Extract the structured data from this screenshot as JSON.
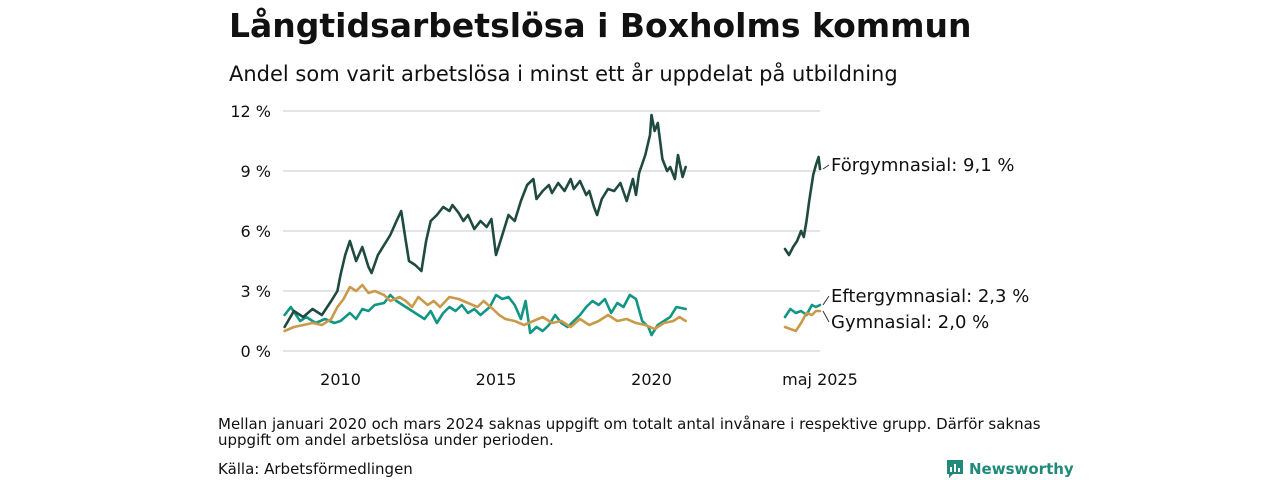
{
  "title": "Långtidsarbetslösa i Boxholms kommun",
  "subtitle": "Andel som varit arbetslösa i minst ett år uppdelat på utbildning",
  "note": "Mellan januari 2020 och mars 2024 saknas uppgift om totalt antal invånare i respektive grupp. Därför saknas uppgift om andel arbetslösa under perioden.",
  "source": "Källa: Arbetsförmedlingen",
  "brand": "Newsworthy",
  "chart_data": {
    "type": "line",
    "y_ticks": [
      "0 %",
      "3 %",
      "6 %",
      "9 %",
      "12 %"
    ],
    "y_tick_values": [
      0,
      3,
      6,
      9,
      12
    ],
    "x_ticks": [
      "2010",
      "2015",
      "2020",
      "maj 2025"
    ],
    "ylim": [
      0,
      12
    ],
    "grid": true,
    "gap": [
      "2020-01",
      "2024-03"
    ],
    "series": [
      {
        "name": "Förgymnasial",
        "label": "Förgymnasial: 9,1 %",
        "color": "#1f4a40",
        "segments": [
          [
            [
              2008.2,
              1.2
            ],
            [
              2008.5,
              2.0
            ],
            [
              2008.8,
              1.7
            ],
            [
              2009.1,
              2.1
            ],
            [
              2009.4,
              1.8
            ],
            [
              2009.7,
              2.5
            ],
            [
              2009.9,
              3.0
            ],
            [
              2010.0,
              3.8
            ],
            [
              2010.15,
              4.8
            ],
            [
              2010.3,
              5.5
            ],
            [
              2010.5,
              4.5
            ],
            [
              2010.7,
              5.2
            ],
            [
              2010.9,
              4.2
            ],
            [
              2011.0,
              3.9
            ],
            [
              2011.2,
              4.8
            ],
            [
              2011.4,
              5.3
            ],
            [
              2011.6,
              5.8
            ],
            [
              2011.8,
              6.5
            ],
            [
              2011.95,
              7.0
            ],
            [
              2012.1,
              5.5
            ],
            [
              2012.2,
              4.5
            ],
            [
              2012.4,
              4.3
            ],
            [
              2012.6,
              4.0
            ],
            [
              2012.75,
              5.5
            ],
            [
              2012.9,
              6.5
            ],
            [
              2013.1,
              6.8
            ],
            [
              2013.3,
              7.2
            ],
            [
              2013.5,
              7.0
            ],
            [
              2013.6,
              7.3
            ],
            [
              2013.8,
              6.9
            ],
            [
              2013.95,
              6.5
            ],
            [
              2014.1,
              6.8
            ],
            [
              2014.3,
              6.1
            ],
            [
              2014.5,
              6.5
            ],
            [
              2014.7,
              6.2
            ],
            [
              2014.85,
              6.6
            ],
            [
              2015.0,
              4.8
            ],
            [
              2015.2,
              5.8
            ],
            [
              2015.4,
              6.8
            ],
            [
              2015.6,
              6.5
            ],
            [
              2015.8,
              7.5
            ],
            [
              2016.0,
              8.3
            ],
            [
              2016.2,
              8.6
            ],
            [
              2016.3,
              7.6
            ],
            [
              2016.5,
              8.0
            ],
            [
              2016.7,
              8.3
            ],
            [
              2016.8,
              7.9
            ],
            [
              2017.0,
              8.4
            ],
            [
              2017.2,
              8.0
            ],
            [
              2017.4,
              8.6
            ],
            [
              2017.5,
              8.1
            ],
            [
              2017.7,
              8.5
            ],
            [
              2017.9,
              7.8
            ],
            [
              2018.0,
              8.0
            ],
            [
              2018.15,
              7.2
            ],
            [
              2018.25,
              6.8
            ],
            [
              2018.4,
              7.6
            ],
            [
              2018.6,
              8.1
            ],
            [
              2018.8,
              8.0
            ],
            [
              2019.0,
              8.4
            ],
            [
              2019.2,
              7.5
            ],
            [
              2019.4,
              8.6
            ],
            [
              2019.5,
              7.8
            ],
            [
              2019.6,
              8.9
            ],
            [
              2019.8,
              9.8
            ],
            [
              2019.95,
              10.8
            ],
            [
              2020.0,
              11.8
            ],
            [
              2020.1,
              11.0
            ],
            [
              2020.2,
              11.4
            ],
            [
              2020.35,
              9.6
            ],
            [
              2020.5,
              9.0
            ],
            [
              2020.6,
              9.2
            ],
            [
              2020.75,
              8.6
            ],
            [
              2020.85,
              9.8
            ],
            [
              2021.0,
              8.7
            ],
            [
              2021.1,
              9.2
            ]
          ],
          [
            [
              2024.2,
              5.1
            ],
            [
              2024.35,
              4.8
            ],
            [
              2024.5,
              5.2
            ],
            [
              2024.65,
              5.5
            ],
            [
              2024.8,
              6.0
            ],
            [
              2024.9,
              5.7
            ],
            [
              2025.0,
              6.5
            ],
            [
              2025.1,
              7.5
            ],
            [
              2025.25,
              8.8
            ],
            [
              2025.35,
              9.3
            ],
            [
              2025.45,
              9.7
            ],
            [
              2025.5,
              9.1
            ]
          ]
        ]
      },
      {
        "name": "Eftergymnasial",
        "label": "Eftergymnasial: 2,3 %",
        "color": "#119683",
        "segments": [
          [
            [
              2008.2,
              1.8
            ],
            [
              2008.4,
              2.2
            ],
            [
              2008.7,
              1.5
            ],
            [
              2008.9,
              1.7
            ],
            [
              2009.2,
              1.4
            ],
            [
              2009.5,
              1.6
            ],
            [
              2009.8,
              1.4
            ],
            [
              2010.0,
              1.5
            ],
            [
              2010.3,
              1.9
            ],
            [
              2010.5,
              1.6
            ],
            [
              2010.7,
              2.1
            ],
            [
              2010.9,
              2.0
            ],
            [
              2011.1,
              2.3
            ],
            [
              2011.4,
              2.4
            ],
            [
              2011.6,
              2.8
            ],
            [
              2011.8,
              2.5
            ],
            [
              2012.0,
              2.3
            ],
            [
              2012.2,
              2.1
            ],
            [
              2012.5,
              1.8
            ],
            [
              2012.7,
              1.6
            ],
            [
              2012.9,
              2.0
            ],
            [
              2013.1,
              1.4
            ],
            [
              2013.3,
              1.9
            ],
            [
              2013.5,
              2.2
            ],
            [
              2013.7,
              2.0
            ],
            [
              2013.9,
              2.3
            ],
            [
              2014.1,
              1.9
            ],
            [
              2014.3,
              2.1
            ],
            [
              2014.5,
              1.8
            ],
            [
              2014.8,
              2.2
            ],
            [
              2015.0,
              2.8
            ],
            [
              2015.2,
              2.6
            ],
            [
              2015.4,
              2.7
            ],
            [
              2015.6,
              2.3
            ],
            [
              2015.8,
              1.6
            ],
            [
              2015.95,
              2.5
            ],
            [
              2016.1,
              0.9
            ],
            [
              2016.3,
              1.2
            ],
            [
              2016.5,
              1.0
            ],
            [
              2016.7,
              1.3
            ],
            [
              2016.9,
              1.8
            ],
            [
              2017.1,
              1.4
            ],
            [
              2017.3,
              1.2
            ],
            [
              2017.5,
              1.5
            ],
            [
              2017.7,
              1.8
            ],
            [
              2017.9,
              2.2
            ],
            [
              2018.1,
              2.5
            ],
            [
              2018.3,
              2.3
            ],
            [
              2018.5,
              2.6
            ],
            [
              2018.7,
              1.9
            ],
            [
              2018.9,
              2.4
            ],
            [
              2019.1,
              2.2
            ],
            [
              2019.3,
              2.8
            ],
            [
              2019.5,
              2.6
            ],
            [
              2019.7,
              1.5
            ],
            [
              2019.9,
              1.2
            ],
            [
              2020.0,
              0.8
            ],
            [
              2020.2,
              1.3
            ],
            [
              2020.4,
              1.5
            ],
            [
              2020.6,
              1.7
            ],
            [
              2020.8,
              2.2
            ],
            [
              2021.1,
              2.1
            ]
          ],
          [
            [
              2024.2,
              1.7
            ],
            [
              2024.4,
              2.1
            ],
            [
              2024.6,
              1.9
            ],
            [
              2024.8,
              2.0
            ],
            [
              2025.0,
              1.8
            ],
            [
              2025.2,
              2.3
            ],
            [
              2025.35,
              2.2
            ],
            [
              2025.5,
              2.3
            ]
          ]
        ]
      },
      {
        "name": "Gymnasial",
        "label": "Gymnasial: 2,0 %",
        "color": "#c99a4a",
        "segments": [
          [
            [
              2008.2,
              1.0
            ],
            [
              2008.5,
              1.2
            ],
            [
              2008.8,
              1.3
            ],
            [
              2009.1,
              1.4
            ],
            [
              2009.4,
              1.3
            ],
            [
              2009.7,
              1.6
            ],
            [
              2009.9,
              2.2
            ],
            [
              2010.1,
              2.6
            ],
            [
              2010.3,
              3.2
            ],
            [
              2010.5,
              3.0
            ],
            [
              2010.7,
              3.3
            ],
            [
              2010.9,
              2.9
            ],
            [
              2011.1,
              3.0
            ],
            [
              2011.4,
              2.8
            ],
            [
              2011.6,
              2.5
            ],
            [
              2011.9,
              2.7
            ],
            [
              2012.1,
              2.5
            ],
            [
              2012.3,
              2.2
            ],
            [
              2012.5,
              2.7
            ],
            [
              2012.8,
              2.3
            ],
            [
              2013.0,
              2.5
            ],
            [
              2013.2,
              2.2
            ],
            [
              2013.5,
              2.7
            ],
            [
              2013.8,
              2.6
            ],
            [
              2014.1,
              2.4
            ],
            [
              2014.4,
              2.2
            ],
            [
              2014.6,
              2.5
            ],
            [
              2014.9,
              2.1
            ],
            [
              2015.1,
              1.8
            ],
            [
              2015.3,
              1.6
            ],
            [
              2015.6,
              1.5
            ],
            [
              2015.9,
              1.3
            ],
            [
              2016.2,
              1.5
            ],
            [
              2016.5,
              1.7
            ],
            [
              2016.8,
              1.4
            ],
            [
              2017.1,
              1.5
            ],
            [
              2017.4,
              1.2
            ],
            [
              2017.7,
              1.6
            ],
            [
              2018.0,
              1.3
            ],
            [
              2018.3,
              1.5
            ],
            [
              2018.6,
              1.8
            ],
            [
              2018.9,
              1.5
            ],
            [
              2019.2,
              1.6
            ],
            [
              2019.5,
              1.4
            ],
            [
              2019.8,
              1.3
            ],
            [
              2020.1,
              1.1
            ],
            [
              2020.4,
              1.4
            ],
            [
              2020.7,
              1.5
            ],
            [
              2020.9,
              1.7
            ],
            [
              2021.1,
              1.5
            ]
          ],
          [
            [
              2024.2,
              1.2
            ],
            [
              2024.4,
              1.1
            ],
            [
              2024.6,
              1.0
            ],
            [
              2024.8,
              1.4
            ],
            [
              2025.0,
              1.9
            ],
            [
              2025.2,
              1.8
            ],
            [
              2025.35,
              2.0
            ],
            [
              2025.5,
              2.0
            ]
          ]
        ]
      }
    ]
  }
}
